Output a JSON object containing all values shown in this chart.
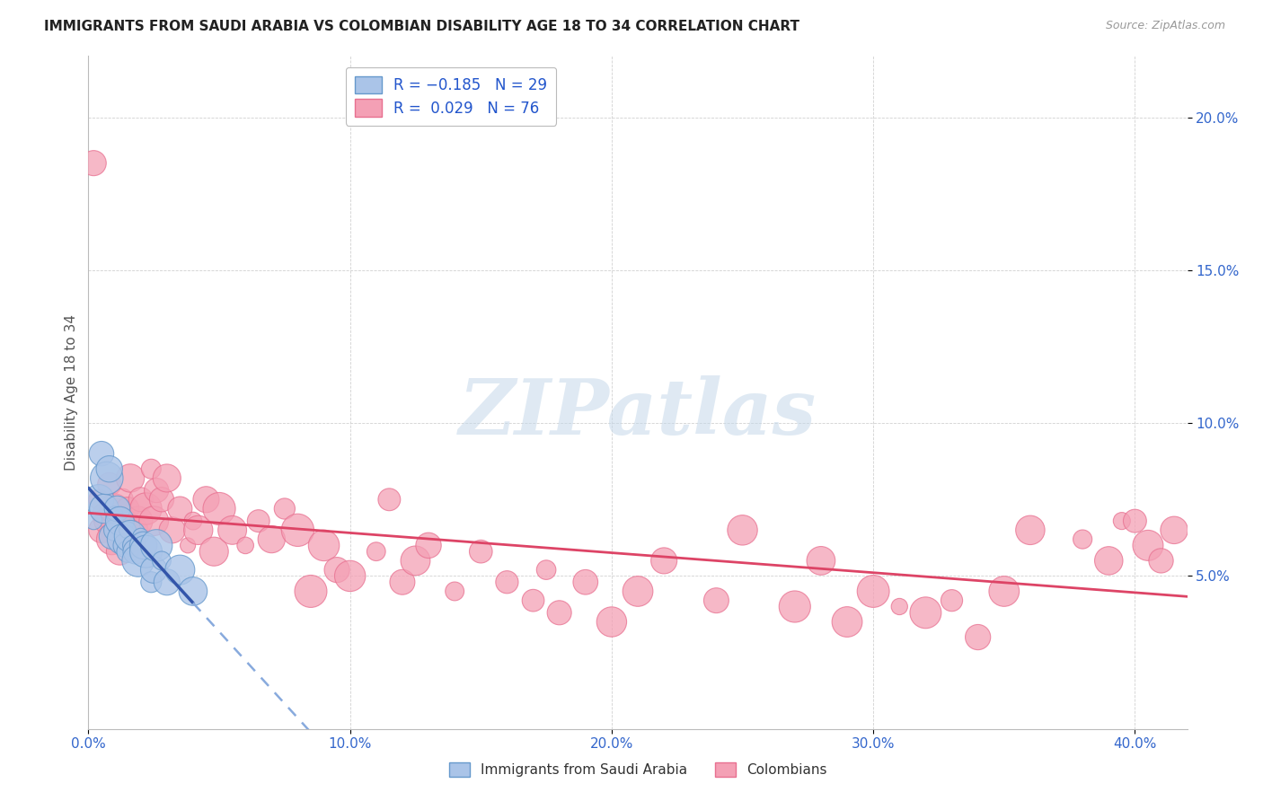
{
  "title": "IMMIGRANTS FROM SAUDI ARABIA VS COLOMBIAN DISABILITY AGE 18 TO 34 CORRELATION CHART",
  "source": "Source: ZipAtlas.com",
  "ylabel": "Disability Age 18 to 34",
  "xlim": [
    0.0,
    0.42
  ],
  "ylim": [
    0.0,
    0.22
  ],
  "xticks": [
    0.0,
    0.1,
    0.2,
    0.3,
    0.4
  ],
  "yticks": [
    0.05,
    0.1,
    0.15,
    0.2
  ],
  "xtick_labels": [
    "0.0%",
    "10.0%",
    "20.0%",
    "30.0%",
    "40.0%"
  ],
  "ytick_labels": [
    "5.0%",
    "10.0%",
    "15.0%",
    "20.0%"
  ],
  "saudi_color": "#aac4e8",
  "colombian_color": "#f4a0b5",
  "saudi_edge": "#6699cc",
  "colombian_edge": "#e87090",
  "watermark_text": "ZIPatlas",
  "watermark_color": "#c5d8ea",
  "saudi_line_color": "#3355aa",
  "saudi_dash_color": "#88aadd",
  "colombian_line_color": "#dd4466",
  "saudi_x": [
    0.002,
    0.004,
    0.005,
    0.006,
    0.007,
    0.008,
    0.009,
    0.01,
    0.01,
    0.011,
    0.012,
    0.013,
    0.014,
    0.015,
    0.015,
    0.016,
    0.017,
    0.018,
    0.019,
    0.02,
    0.021,
    0.022,
    0.024,
    0.025,
    0.026,
    0.028,
    0.03,
    0.035,
    0.04
  ],
  "saudi_y": [
    0.068,
    0.075,
    0.09,
    0.072,
    0.082,
    0.085,
    0.063,
    0.07,
    0.065,
    0.072,
    0.068,
    0.062,
    0.06,
    0.065,
    0.058,
    0.063,
    0.06,
    0.058,
    0.055,
    0.063,
    0.06,
    0.058,
    0.048,
    0.052,
    0.06,
    0.055,
    0.048,
    0.052,
    0.045
  ],
  "colombian_x": [
    0.002,
    0.004,
    0.005,
    0.006,
    0.007,
    0.008,
    0.009,
    0.01,
    0.011,
    0.012,
    0.013,
    0.014,
    0.015,
    0.016,
    0.017,
    0.018,
    0.019,
    0.02,
    0.022,
    0.024,
    0.025,
    0.026,
    0.028,
    0.03,
    0.032,
    0.035,
    0.038,
    0.04,
    0.042,
    0.045,
    0.048,
    0.05,
    0.055,
    0.06,
    0.065,
    0.07,
    0.075,
    0.08,
    0.085,
    0.09,
    0.095,
    0.1,
    0.11,
    0.115,
    0.12,
    0.125,
    0.13,
    0.14,
    0.15,
    0.16,
    0.17,
    0.175,
    0.18,
    0.19,
    0.2,
    0.21,
    0.22,
    0.24,
    0.25,
    0.27,
    0.28,
    0.29,
    0.3,
    0.31,
    0.32,
    0.33,
    0.34,
    0.35,
    0.36,
    0.38,
    0.39,
    0.395,
    0.4,
    0.405,
    0.41,
    0.415
  ],
  "colombian_y": [
    0.185,
    0.075,
    0.065,
    0.07,
    0.068,
    0.08,
    0.062,
    0.072,
    0.065,
    0.058,
    0.075,
    0.068,
    0.072,
    0.082,
    0.06,
    0.065,
    0.068,
    0.075,
    0.072,
    0.085,
    0.068,
    0.078,
    0.075,
    0.082,
    0.065,
    0.072,
    0.06,
    0.068,
    0.065,
    0.075,
    0.058,
    0.072,
    0.065,
    0.06,
    0.068,
    0.062,
    0.072,
    0.065,
    0.045,
    0.06,
    0.052,
    0.05,
    0.058,
    0.075,
    0.048,
    0.055,
    0.06,
    0.045,
    0.058,
    0.048,
    0.042,
    0.052,
    0.038,
    0.048,
    0.035,
    0.045,
    0.055,
    0.042,
    0.065,
    0.04,
    0.055,
    0.035,
    0.045,
    0.04,
    0.038,
    0.042,
    0.03,
    0.045,
    0.065,
    0.062,
    0.055,
    0.068,
    0.068,
    0.06,
    0.055,
    0.065
  ]
}
